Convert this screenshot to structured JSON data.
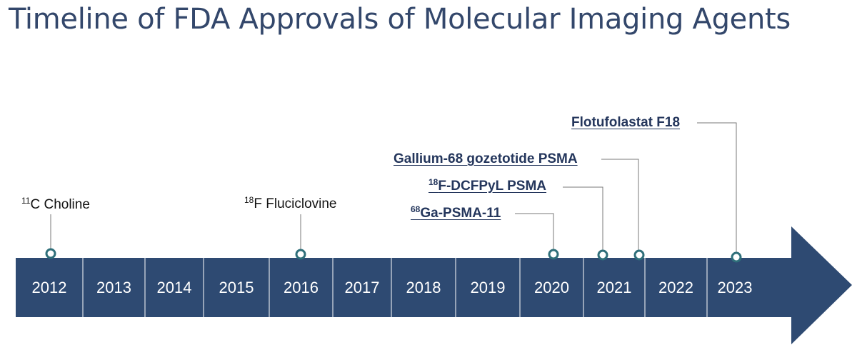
{
  "title": "Timeline of FDA Approvals of Molecular Imaging Agents",
  "colors": {
    "title": "#33476b",
    "band": "#2e4a72",
    "marker_ring": "#2f6f7a",
    "leader": "#7a7a7a",
    "bold_label": "#24365c"
  },
  "years": [
    "2012",
    "2013",
    "2014",
    "2015",
    "2016",
    "2017",
    "2018",
    "2019",
    "2020",
    "2021",
    "2022",
    "2023"
  ],
  "events": [
    {
      "sup": "11",
      "text": "C Choline",
      "bold": false
    },
    {
      "sup": "18",
      "text": "F Fluciclovine",
      "bold": false
    },
    {
      "sup": "68",
      "text": "Ga-PSMA-11",
      "bold": true
    },
    {
      "sup": "18",
      "text": "F-DCFPyL PSMA",
      "bold": true
    },
    {
      "sup": "",
      "text": "Gallium-68 gozetotide PSMA",
      "bold": true
    },
    {
      "sup": "",
      "text": "Flotufolastat F18",
      "bold": true
    }
  ]
}
